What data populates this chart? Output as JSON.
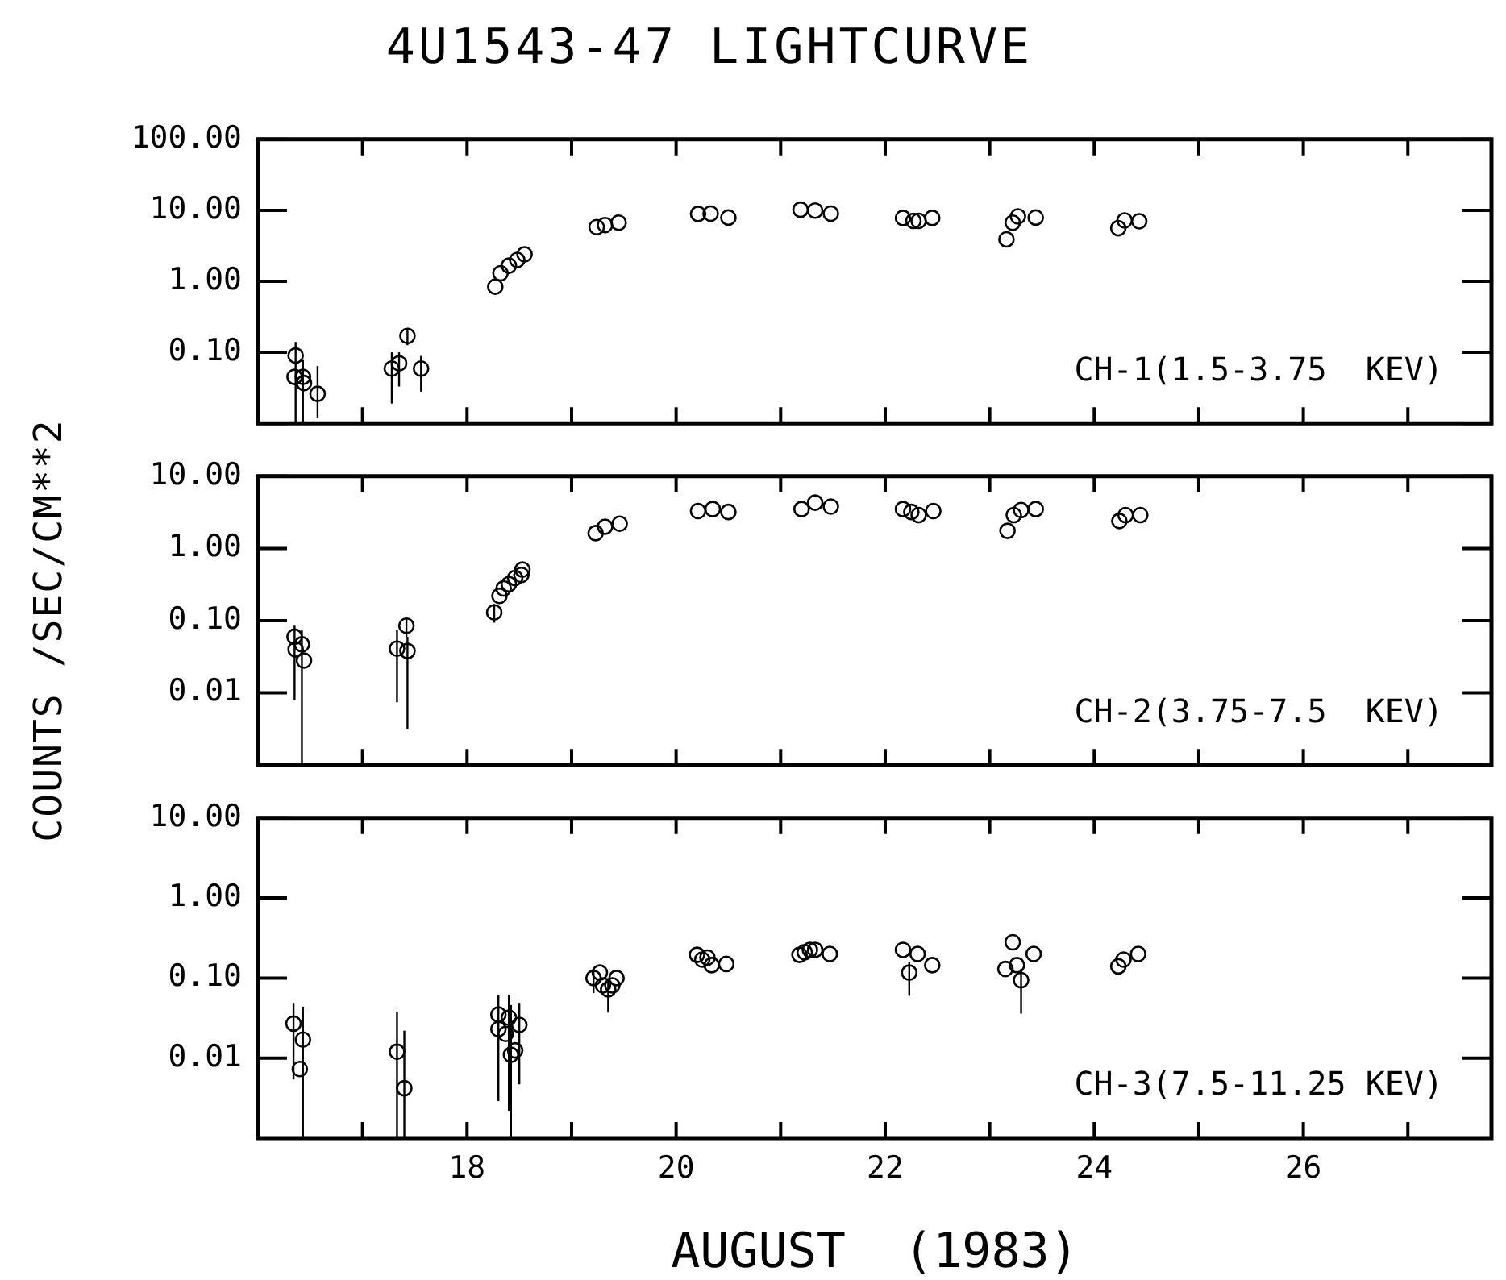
{
  "chart_data": [
    {
      "type": "scatter",
      "title": "4U1543-47 LIGHTCURVE",
      "log": "y",
      "marker": "circle",
      "tick_labels": "y",
      "xlim": [
        16,
        27.8
      ],
      "xticks": [
        {
          "value": 17,
          "label": null
        },
        {
          "value": 18,
          "label": null
        },
        {
          "value": 19,
          "label": null
        },
        {
          "value": 20,
          "label": null
        },
        {
          "value": 21,
          "label": null
        },
        {
          "value": 22,
          "label": null
        },
        {
          "value": 23,
          "label": null
        },
        {
          "value": 24,
          "label": null
        },
        {
          "value": 25,
          "label": null
        },
        {
          "value": 26,
          "label": null
        },
        {
          "value": 27,
          "label": null
        }
      ],
      "ylim": [
        0.01,
        100
      ],
      "yticks": [
        {
          "value": 100,
          "label": "100.00"
        },
        {
          "value": 10,
          "label": "10.00"
        },
        {
          "value": 1,
          "label": "1.00"
        },
        {
          "value": 0.1,
          "label": "0.10"
        },
        {
          "value": 0.01,
          "label": null
        }
      ],
      "annotations": [
        "CH-1(1.5-3.75  KEV)"
      ],
      "series": [
        {
          "color": "#000000",
          "x": [
            16.36,
            16.35,
            16.43,
            16.44,
            16.57,
            17.28,
            17.35,
            17.43,
            17.56,
            18.27,
            18.32,
            18.4,
            18.48,
            18.55,
            19.24,
            19.32,
            19.45,
            20.21,
            20.33,
            20.5,
            21.19,
            21.33,
            21.48,
            22.17,
            22.27,
            22.32,
            22.45,
            23.16,
            23.22,
            23.27,
            23.44,
            24.23,
            24.29,
            24.43
          ],
          "values": [
            0.09,
            0.045,
            0.045,
            0.037,
            0.026,
            0.059,
            0.07,
            0.17,
            0.059,
            0.84,
            1.3,
            1.66,
            2.0,
            2.4,
            5.8,
            6.2,
            6.7,
            8.9,
            9.0,
            7.9,
            10.2,
            9.9,
            9.0,
            7.8,
            7.1,
            7.1,
            7.8,
            3.9,
            6.7,
            8.2,
            7.9,
            5.6,
            7.2,
            7.0
          ],
          "errors": [
            [
              0.01,
              0.14
            ],
            null,
            [
              0.01,
              0.078
            ],
            null,
            [
              0.012,
              0.064
            ],
            [
              0.019,
              0.1
            ],
            [
              0.033,
              0.1
            ],
            [
              0.126,
              0.22
            ],
            [
              0.028,
              0.089
            ],
            null,
            null,
            null,
            null,
            null,
            null,
            null,
            null,
            null,
            null,
            null,
            null,
            null,
            null,
            null,
            null,
            null,
            null,
            null,
            null,
            null,
            null,
            null,
            null,
            null
          ]
        }
      ]
    },
    {
      "type": "scatter",
      "ylabel": "COUNTS /SEC/CM**2",
      "log": "y",
      "marker": "circle",
      "tick_labels": "y",
      "xlim": [
        16,
        27.8
      ],
      "xticks": [
        {
          "value": 17,
          "label": null
        },
        {
          "value": 18,
          "label": null
        },
        {
          "value": 19,
          "label": null
        },
        {
          "value": 20,
          "label": null
        },
        {
          "value": 21,
          "label": null
        },
        {
          "value": 22,
          "label": null
        },
        {
          "value": 23,
          "label": null
        },
        {
          "value": 24,
          "label": null
        },
        {
          "value": 25,
          "label": null
        },
        {
          "value": 26,
          "label": null
        },
        {
          "value": 27,
          "label": null
        }
      ],
      "ylim": [
        0.001,
        10
      ],
      "yticks": [
        {
          "value": 10,
          "label": "10.00"
        },
        {
          "value": 1,
          "label": "1.00"
        },
        {
          "value": 0.1,
          "label": "0.10"
        },
        {
          "value": 0.01,
          "label": "0.01"
        },
        {
          "value": 0.001,
          "label": null
        }
      ],
      "annotations": [
        "CH-2(3.75-7.5  KEV)"
      ],
      "series": [
        {
          "color": "#000000",
          "x": [
            16.35,
            16.36,
            16.42,
            16.44,
            17.33,
            17.42,
            17.43,
            18.26,
            18.31,
            18.35,
            18.4,
            18.46,
            18.52,
            18.53,
            19.23,
            19.32,
            19.46,
            20.21,
            20.35,
            20.5,
            21.2,
            21.33,
            21.48,
            22.17,
            22.25,
            22.32,
            22.46,
            23.17,
            23.23,
            23.3,
            23.44,
            24.24,
            24.3,
            24.44
          ],
          "values": [
            0.06,
            0.04,
            0.047,
            0.028,
            0.041,
            0.085,
            0.038,
            0.13,
            0.22,
            0.28,
            0.32,
            0.39,
            0.43,
            0.51,
            1.63,
            2.0,
            2.2,
            3.3,
            3.5,
            3.2,
            3.5,
            4.3,
            3.8,
            3.5,
            3.2,
            2.9,
            3.3,
            1.75,
            2.9,
            3.4,
            3.5,
            2.4,
            2.9,
            2.9
          ],
          "errors": [
            [
              0.008,
              0.085
            ],
            null,
            [
              0.001,
              0.074
            ],
            null,
            [
              0.0074,
              0.074
            ],
            [
              0.06,
              0.11
            ],
            [
              0.0032,
              0.06
            ],
            [
              0.094,
              0.17
            ],
            null,
            null,
            null,
            null,
            null,
            null,
            null,
            null,
            null,
            null,
            null,
            null,
            null,
            null,
            null,
            null,
            null,
            null,
            null,
            null,
            null,
            null,
            null,
            null,
            null,
            null
          ]
        }
      ]
    },
    {
      "type": "scatter",
      "xlabel": "AUGUST  (1983)",
      "log": "y",
      "marker": "circle",
      "xlim": [
        16,
        27.8
      ],
      "xticks": [
        {
          "value": 17,
          "label": null
        },
        18,
        {
          "value": 19,
          "label": null
        },
        20,
        {
          "value": 21,
          "label": null
        },
        22,
        {
          "value": 23,
          "label": null
        },
        24,
        {
          "value": 25,
          "label": null
        },
        26,
        {
          "value": 27,
          "label": null
        }
      ],
      "ylim": [
        0.001,
        10
      ],
      "yticks": [
        {
          "value": 10,
          "label": "10.00"
        },
        {
          "value": 1,
          "label": "1.00"
        },
        {
          "value": 0.1,
          "label": "0.10"
        },
        {
          "value": 0.01,
          "label": "0.01"
        },
        {
          "value": 0.001,
          "label": null
        }
      ],
      "annotations": [
        "CH-3(7.5-11.25 KEV)"
      ],
      "series": [
        {
          "color": "#000000",
          "x": [
            16.34,
            16.43,
            16.4,
            17.33,
            17.4,
            18.3,
            18.3,
            18.4,
            18.37,
            18.42,
            18.46,
            18.5,
            19.21,
            19.27,
            19.3,
            19.35,
            19.39,
            19.43,
            20.2,
            20.25,
            20.3,
            20.34,
            20.48,
            21.18,
            21.23,
            21.28,
            21.33,
            21.47,
            22.17,
            22.23,
            22.31,
            22.45,
            23.15,
            23.22,
            23.26,
            23.3,
            23.42,
            24.23,
            24.28,
            24.42
          ],
          "values": [
            0.027,
            0.017,
            0.0073,
            0.012,
            0.0042,
            0.035,
            0.023,
            0.032,
            0.02,
            0.011,
            0.0125,
            0.026,
            0.1,
            0.117,
            0.081,
            0.072,
            0.081,
            0.1,
            0.195,
            0.17,
            0.18,
            0.145,
            0.15,
            0.195,
            0.21,
            0.225,
            0.225,
            0.2,
            0.225,
            0.117,
            0.2,
            0.145,
            0.13,
            0.28,
            0.145,
            0.094,
            0.2,
            0.14,
            0.17,
            0.2
          ],
          "errors": [
            [
              0.0054,
              0.049
            ],
            [
              0.001,
              0.044
            ],
            null,
            [
              0.001,
              0.038
            ],
            [
              0.001,
              0.022
            ],
            [
              0.0029,
              0.062
            ],
            null,
            [
              0.0022,
              0.062
            ],
            null,
            [
              0.001,
              0.046
            ],
            null,
            [
              0.0047,
              0.049
            ],
            [
              0.065,
              0.135
            ],
            null,
            null,
            [
              0.037,
              0.1
            ],
            null,
            null,
            null,
            null,
            null,
            null,
            null,
            null,
            null,
            null,
            null,
            null,
            null,
            [
              0.06,
              0.16
            ],
            null,
            null,
            null,
            null,
            null,
            [
              0.036,
              0.13
            ],
            null,
            null,
            null,
            null
          ]
        }
      ]
    }
  ]
}
